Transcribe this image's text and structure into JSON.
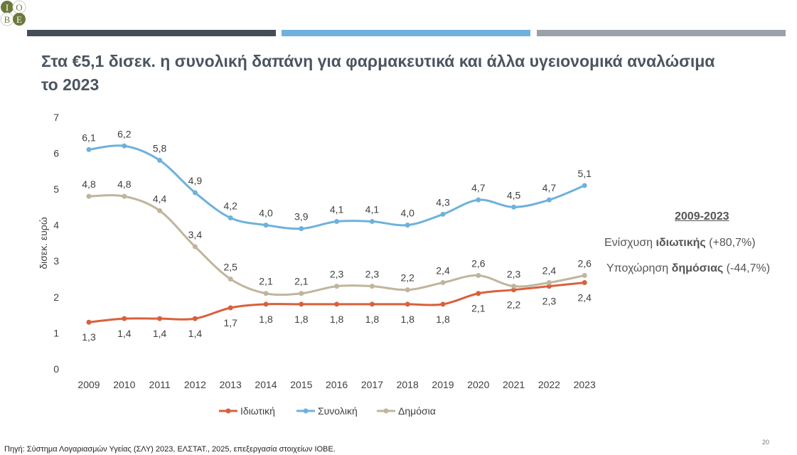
{
  "logo": {
    "text": "IOBE",
    "colors": [
      "#6b7a3a",
      "#ffffff"
    ]
  },
  "header_bars": [
    "#454d57",
    "#6fb1dc",
    "#9aa1a8"
  ],
  "title": "Στα €5,1 δισεκ. η συνολική δαπάνη για φαρμακευτικά και άλλα υγειονομικά αναλώσιμα το 2023",
  "side": {
    "heading": "2009-2023",
    "line1_pre": "Ενίσχυση ",
    "line1_bold": "ιδιωτικής",
    "line1_post": " (+80,7%)",
    "line2_pre": "Υποχώρηση ",
    "line2_bold": "δημόσιας",
    "line2_post": " (-44,7%)"
  },
  "source": "Πηγή: Σύστημα Λογαριασμών Υγείας (ΣΛΥ) 2023, ΕΛΣΤΑΤ., 2025, επεξεργασία στοιχείων ΙΟΒΕ.",
  "page_number": "20",
  "chart_data": {
    "type": "line",
    "categories": [
      "2009",
      "2010",
      "2011",
      "2012",
      "2013",
      "2014",
      "2015",
      "2016",
      "2017",
      "2018",
      "2019",
      "2020",
      "2021",
      "2022",
      "2023"
    ],
    "ylabel": "δισεκ. ευρώ",
    "ylim": [
      0,
      7
    ],
    "yticks": [
      "0",
      "1",
      "2",
      "3",
      "4",
      "5",
      "6",
      "7"
    ],
    "grid": false,
    "legend": "bottom",
    "series": [
      {
        "name": "Ιδιωτική",
        "color": "#d9603b",
        "label_pos": "below",
        "values": [
          1.3,
          1.4,
          1.4,
          1.4,
          1.7,
          1.8,
          1.8,
          1.8,
          1.8,
          1.8,
          1.8,
          2.1,
          2.2,
          2.3,
          2.4
        ]
      },
      {
        "name": "Συνολική",
        "color": "#6fb1dc",
        "label_pos": "above",
        "values": [
          6.1,
          6.2,
          5.8,
          4.9,
          4.2,
          4.0,
          3.9,
          4.1,
          4.1,
          4.0,
          4.3,
          4.7,
          4.5,
          4.7,
          5.1
        ]
      },
      {
        "name": "Δημόσια",
        "color": "#c0b59c",
        "label_pos": "above",
        "values": [
          4.8,
          4.8,
          4.4,
          3.4,
          2.5,
          2.1,
          2.1,
          2.3,
          2.3,
          2.2,
          2.4,
          2.6,
          2.3,
          2.4,
          2.6
        ]
      }
    ]
  }
}
